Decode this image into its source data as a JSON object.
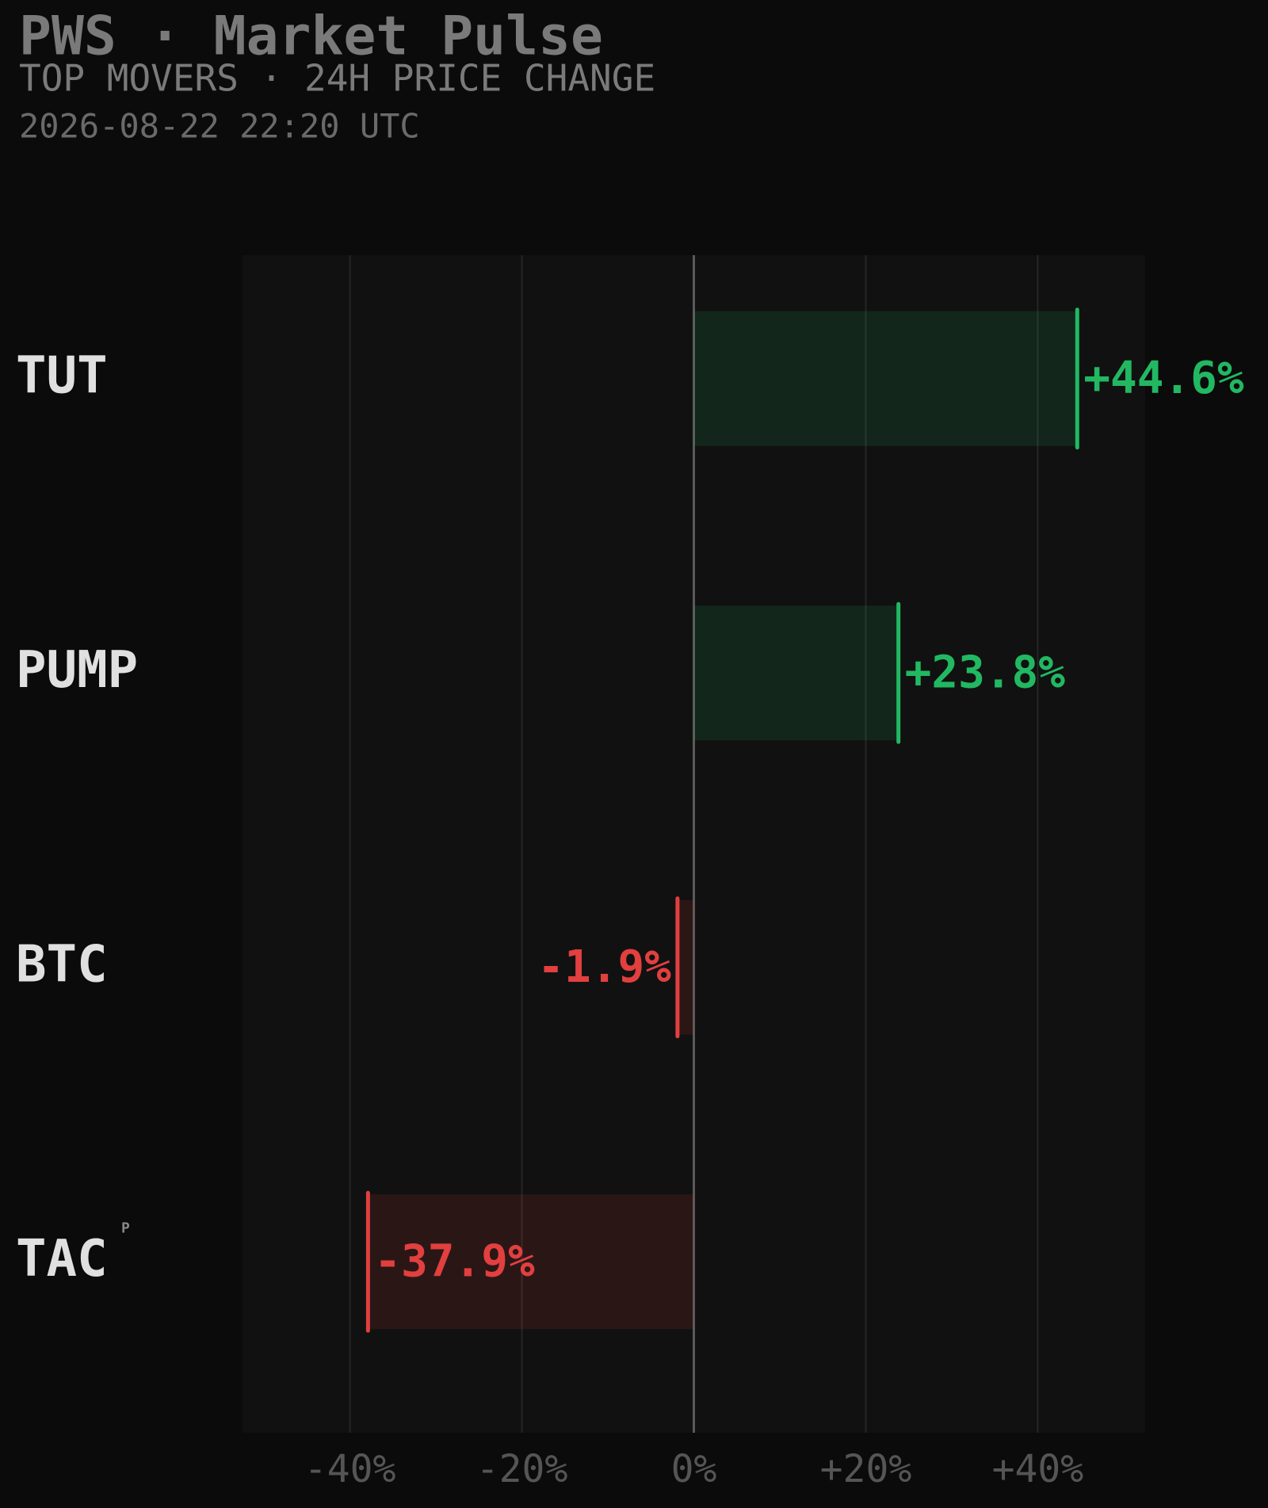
{
  "chart_data": {
    "type": "hbar",
    "title": "PWS · Market Pulse",
    "subtitle": "TOP MOVERS · 24H PRICE CHANGE",
    "timestamp": "2026-08-22 22:20 UTC",
    "categories": [
      "TUT",
      "PUMP",
      "BTC",
      "TAC"
    ],
    "badges": [
      null,
      null,
      null,
      "P"
    ],
    "values": [
      44.6,
      23.8,
      -1.9,
      -37.9
    ],
    "value_labels": [
      "+44.6%",
      "+23.8%",
      "-1.9%",
      "-37.9%"
    ],
    "positive_color": "#22b862",
    "negative_color": "#e23f3f",
    "xlim": [
      -52.5,
      52.5
    ],
    "xticks": [
      {
        "value": -40,
        "label": "-40%"
      },
      {
        "value": -20,
        "label": "-20%"
      },
      {
        "value": 0,
        "label": "0%"
      },
      {
        "value": 20,
        "label": "+20%"
      },
      {
        "value": 40,
        "label": "+40%"
      }
    ],
    "grid": true
  }
}
